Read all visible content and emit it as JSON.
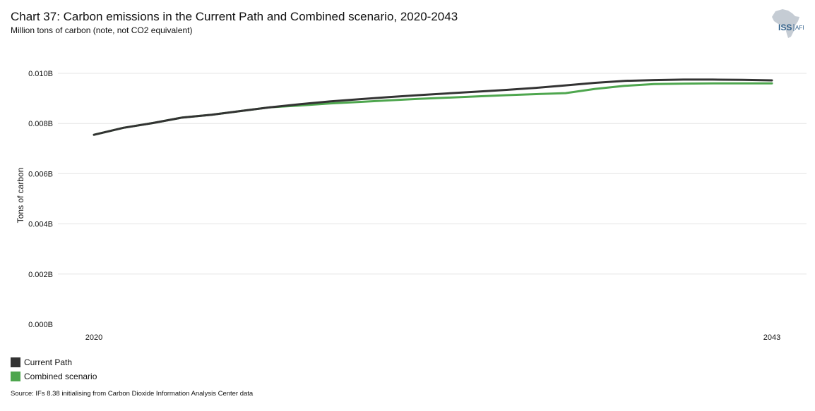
{
  "header": {
    "title": "Chart 37: Carbon emissions in the Current Path and Combined scenario, 2020-2043",
    "subtitle": "Million tons of carbon (note, not CO2 equivalent)"
  },
  "logo": {
    "text_main": "ISS",
    "text_sub": "AFI",
    "color": "#8a9aaa"
  },
  "footer": {
    "source": "Source: IFs 8.38 initialising from Carbon Dioxide Information Analysis Center data"
  },
  "chart_data": {
    "type": "line",
    "ylabel": "Tons of carbon",
    "ylim": [
      0,
      0.01
    ],
    "y_ticks": [
      0,
      0.002,
      0.004,
      0.006,
      0.008,
      0.01
    ],
    "y_tick_labels": [
      "0.000B",
      "0.002B",
      "0.004B",
      "0.006B",
      "0.008B",
      "0.010B"
    ],
    "x_tick_labels": [
      "2020",
      "2043"
    ],
    "grid": true,
    "legend_position": "bottom-left",
    "x": [
      2020,
      2021,
      2022,
      2023,
      2024,
      2025,
      2026,
      2027,
      2028,
      2029,
      2030,
      2031,
      2032,
      2033,
      2034,
      2035,
      2036,
      2037,
      2038,
      2039,
      2040,
      2041,
      2042,
      2043
    ],
    "series": [
      {
        "name": "Current Path",
        "color": "#333333",
        "values": [
          0.00755,
          0.00783,
          0.00802,
          0.00824,
          0.00835,
          0.0085,
          0.00865,
          0.00877,
          0.00888,
          0.00897,
          0.00905,
          0.00913,
          0.0092,
          0.00927,
          0.00934,
          0.00942,
          0.00952,
          0.00962,
          0.0097,
          0.00973,
          0.00975,
          0.00975,
          0.00974,
          0.00972
        ]
      },
      {
        "name": "Combined scenario",
        "color": "#4ea64e",
        "values": [
          0.00755,
          0.00783,
          0.00802,
          0.00824,
          0.00835,
          0.0085,
          0.00865,
          0.00872,
          0.0088,
          0.00886,
          0.00892,
          0.00898,
          0.00903,
          0.00908,
          0.00913,
          0.00917,
          0.00921,
          0.00938,
          0.0095,
          0.00957,
          0.00959,
          0.0096,
          0.0096,
          0.0096
        ]
      }
    ]
  }
}
